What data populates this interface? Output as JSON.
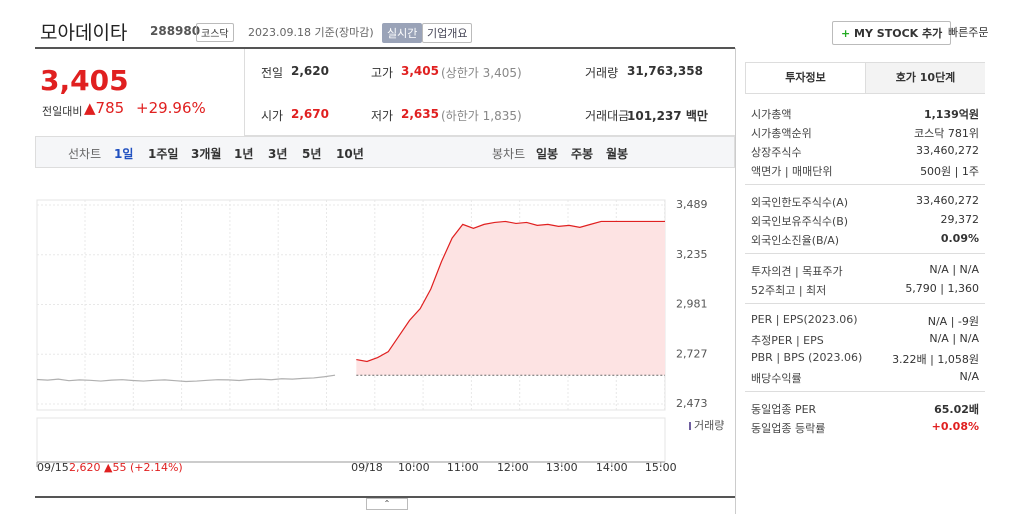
{
  "header": {
    "name": "모아데이타",
    "code": "288980",
    "market": "코스닥",
    "date": "2023.09.18 기준(장마감)",
    "badge": "실시간",
    "overview": "기업개요",
    "mystock": "MY STOCK 추가",
    "quick": "빠른주문"
  },
  "price": {
    "current": "3,405",
    "change_label": "전일대비",
    "change": "785",
    "rate": "+29.96%"
  },
  "summary": [
    {
      "label": "전일",
      "value": "2,620"
    },
    {
      "label": "고가",
      "value": "3,405",
      "note": "(상한가 3,405)"
    },
    {
      "label": "거래량",
      "value": "31,763,358"
    },
    {
      "label": "시가",
      "value": "2,670"
    },
    {
      "label": "저가",
      "value": "2,635",
      "note": "(하한가 1,835)"
    },
    {
      "label": "거래대금",
      "value": "101,237 백만"
    }
  ],
  "tabs": {
    "line_label": "선차트",
    "periods": [
      "1일",
      "1주일",
      "3개월",
      "1년",
      "3년",
      "5년",
      "10년"
    ],
    "candle_label": "봉차트",
    "candles": [
      "일봉",
      "주봉",
      "월봉"
    ]
  },
  "chart_data": {
    "type": "line",
    "volume_label": "거래량",
    "xlim": [
      0,
      59
    ],
    "xticks": [
      {
        "value": 0,
        "label": "09/15"
      },
      {
        "value": 31,
        "label": "09/18"
      },
      {
        "value": 35.4,
        "label": "10:00"
      },
      {
        "value": 40,
        "label": "11:00"
      },
      {
        "value": 44.7,
        "label": "12:00"
      },
      {
        "value": 49.3,
        "label": "13:00"
      },
      {
        "value": 54,
        "label": "14:00"
      },
      {
        "value": 58.6,
        "label": "15:00"
      }
    ],
    "ylim": [
      2473,
      3489
    ],
    "yticks": [
      {
        "value": 2473,
        "label": "2,473"
      },
      {
        "value": 2727,
        "label": "2,727"
      },
      {
        "value": 2981,
        "label": "2,981"
      },
      {
        "value": 3235,
        "label": "3,235"
      },
      {
        "value": 3489,
        "label": "3,489"
      }
    ],
    "reference_line": 2620,
    "series": [
      {
        "name": "09/15",
        "color": "#b0b0b0",
        "values": [
          2598,
          2595,
          2600,
          2592,
          2596,
          2594,
          2590,
          2595,
          2597,
          2593,
          2590,
          2594,
          2596,
          2592,
          2588,
          2590,
          2594,
          2597,
          2596,
          2593,
          2598,
          2600,
          2597,
          2602,
          2600,
          2604,
          2606,
          2612,
          2620,
          null,
          null,
          null,
          null,
          null,
          null,
          null,
          null,
          null,
          null,
          null,
          null,
          null,
          null,
          null,
          null,
          null,
          null,
          null,
          null,
          null,
          null,
          null,
          null,
          null,
          null,
          null,
          null,
          null,
          null,
          null
        ]
      },
      {
        "name": "09/18",
        "color": "#e02020",
        "values": [
          null,
          null,
          null,
          null,
          null,
          null,
          null,
          null,
          null,
          null,
          null,
          null,
          null,
          null,
          null,
          null,
          null,
          null,
          null,
          null,
          null,
          null,
          null,
          null,
          null,
          null,
          null,
          null,
          null,
          null,
          2700,
          2690,
          2710,
          2740,
          2820,
          2900,
          2960,
          3060,
          3200,
          3320,
          3390,
          3370,
          3390,
          3400,
          3405,
          3395,
          3400,
          3385,
          3390,
          3380,
          3385,
          3375,
          3390,
          3405,
          3405,
          3405,
          3405,
          3405,
          3405,
          3405
        ]
      }
    ],
    "prev": {
      "close": "2,620",
      "change": "55",
      "rate": "(+2.14%)"
    }
  },
  "side": {
    "tabs": [
      "투자정보",
      "호가 10단계"
    ],
    "sections": [
      [
        {
          "label": "시가총액",
          "value": "1,139억원"
        },
        {
          "label": "시가총액순위",
          "value": "코스닥 781위"
        },
        {
          "label": "상장주식수",
          "value": "33,460,272"
        },
        {
          "label": "액면가 | 매매단위",
          "value": "500원 | 1주"
        }
      ],
      [
        {
          "label": "외국인한도주식수(A)",
          "value": "33,460,272"
        },
        {
          "label": "외국인보유주식수(B)",
          "value": "29,372"
        },
        {
          "label": "외국인소진율(B/A)",
          "value": "0.09%"
        }
      ],
      [
        {
          "label": "투자의견 | 목표주가",
          "value": "N/A | N/A"
        },
        {
          "label": "52주최고 | 최저",
          "value": "5,790 | 1,360"
        }
      ],
      [
        {
          "label": "PER | EPS(2023.06)",
          "value": "N/A | -9원"
        },
        {
          "label": "추정PER | EPS",
          "value": "N/A | N/A"
        },
        {
          "label": "PBR | BPS (2023.06)",
          "value": "3.22배 | 1,058원"
        },
        {
          "label": "배당수익률",
          "value": "N/A"
        }
      ],
      [
        {
          "label": "동일업종 PER",
          "value": "65.02배"
        },
        {
          "label": "동일업종 등락률",
          "value": "+0.08%"
        }
      ]
    ]
  }
}
